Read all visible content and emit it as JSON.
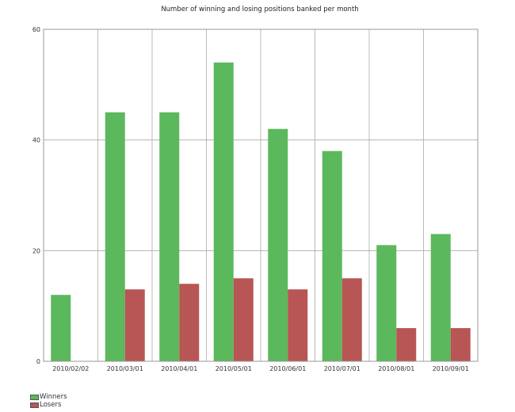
{
  "chart_data": {
    "type": "bar",
    "title": "Number of winning and losing positions banked per month",
    "categories": [
      "2010/02/02",
      "2010/03/01",
      "2010/04/01",
      "2010/05/01",
      "2010/06/01",
      "2010/07/01",
      "2010/08/01",
      "2010/09/01"
    ],
    "series": [
      {
        "name": "Winners",
        "color": "#5cb85c",
        "values": [
          12,
          45,
          45,
          54,
          42,
          38,
          21,
          23
        ]
      },
      {
        "name": "Losers",
        "color": "#b85555",
        "values": [
          null,
          13,
          14,
          15,
          13,
          15,
          6,
          6
        ]
      }
    ],
    "ylim": [
      0,
      60
    ],
    "yticks": [
      "0",
      "20",
      "40",
      "60"
    ],
    "grid": true,
    "legend": "bottom-left"
  }
}
